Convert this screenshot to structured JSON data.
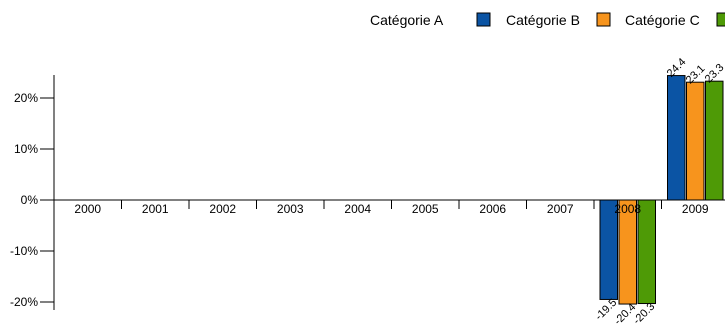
{
  "chart_data": {
    "type": "bar",
    "title": "",
    "xlabel": "",
    "ylabel": "",
    "categories": [
      "2000",
      "2001",
      "2002",
      "2003",
      "2004",
      "2005",
      "2006",
      "2007",
      "2008",
      "2009"
    ],
    "series": [
      {
        "name": "Catégorie A",
        "color": "#0b54a4",
        "values": [
          0,
          0,
          0,
          0,
          0,
          0,
          0,
          0,
          -19.5,
          24.4
        ],
        "labels": [
          "",
          "",
          "",
          "",
          "",
          "",
          "",
          "",
          "-19.5",
          "24.4"
        ]
      },
      {
        "name": "Catégorie B",
        "color": "#f7941d",
        "values": [
          0,
          0,
          0,
          0,
          0,
          0,
          0,
          0,
          -20.4,
          23.1
        ],
        "labels": [
          "",
          "",
          "",
          "",
          "",
          "",
          "",
          "",
          "-20.4",
          "23.1"
        ]
      },
      {
        "name": "Catégorie C",
        "color": "#4e9a06",
        "values": [
          0,
          0,
          0,
          0,
          0,
          0,
          0,
          0,
          -20.3,
          23.3
        ],
        "labels": [
          "",
          "",
          "",
          "",
          "",
          "",
          "",
          "",
          "-20.3",
          "23.3"
        ]
      }
    ],
    "ylim": [
      -20,
      25
    ],
    "yticks": [
      -20,
      -10,
      0,
      10,
      20
    ],
    "ytick_labels": [
      "-20%",
      "-10%",
      "0%",
      "10%",
      "20%"
    ],
    "grid": false,
    "legend_position": "top-right"
  }
}
